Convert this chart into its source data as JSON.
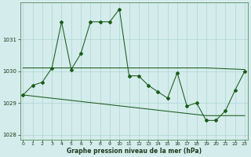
{
  "xlabel": "Graphe pression niveau de la mer (hPa)",
  "background_color": "#d4ecec",
  "grid_color": "#aed4d4",
  "line_color": "#1a5c1a",
  "x_values": [
    0,
    1,
    2,
    3,
    4,
    5,
    6,
    7,
    8,
    9,
    10,
    11,
    12,
    13,
    14,
    15,
    16,
    17,
    18,
    19,
    20,
    21,
    22,
    23
  ],
  "series1": [
    1029.25,
    1029.55,
    1029.65,
    1030.1,
    1031.55,
    1030.05,
    1030.55,
    1031.55,
    1031.55,
    1031.55,
    1031.95,
    1029.85,
    1029.85,
    1029.55,
    1029.35,
    1029.15,
    1029.95,
    1028.9,
    1029.0,
    1028.45,
    1028.45,
    1028.75,
    1029.4,
    1030.0
  ],
  "series2_x": [
    0,
    4,
    19,
    23
  ],
  "series2_y": [
    1030.1,
    1030.1,
    1030.1,
    1030.05
  ],
  "series3_x": [
    0,
    19,
    23
  ],
  "series3_y": [
    1029.25,
    1028.6,
    1028.6
  ],
  "ylim": [
    1027.85,
    1032.15
  ],
  "yticks": [
    1028,
    1029,
    1030,
    1031
  ],
  "xticks": [
    0,
    1,
    2,
    3,
    4,
    5,
    6,
    7,
    8,
    9,
    10,
    11,
    12,
    13,
    14,
    15,
    16,
    17,
    18,
    19,
    20,
    21,
    22,
    23
  ]
}
